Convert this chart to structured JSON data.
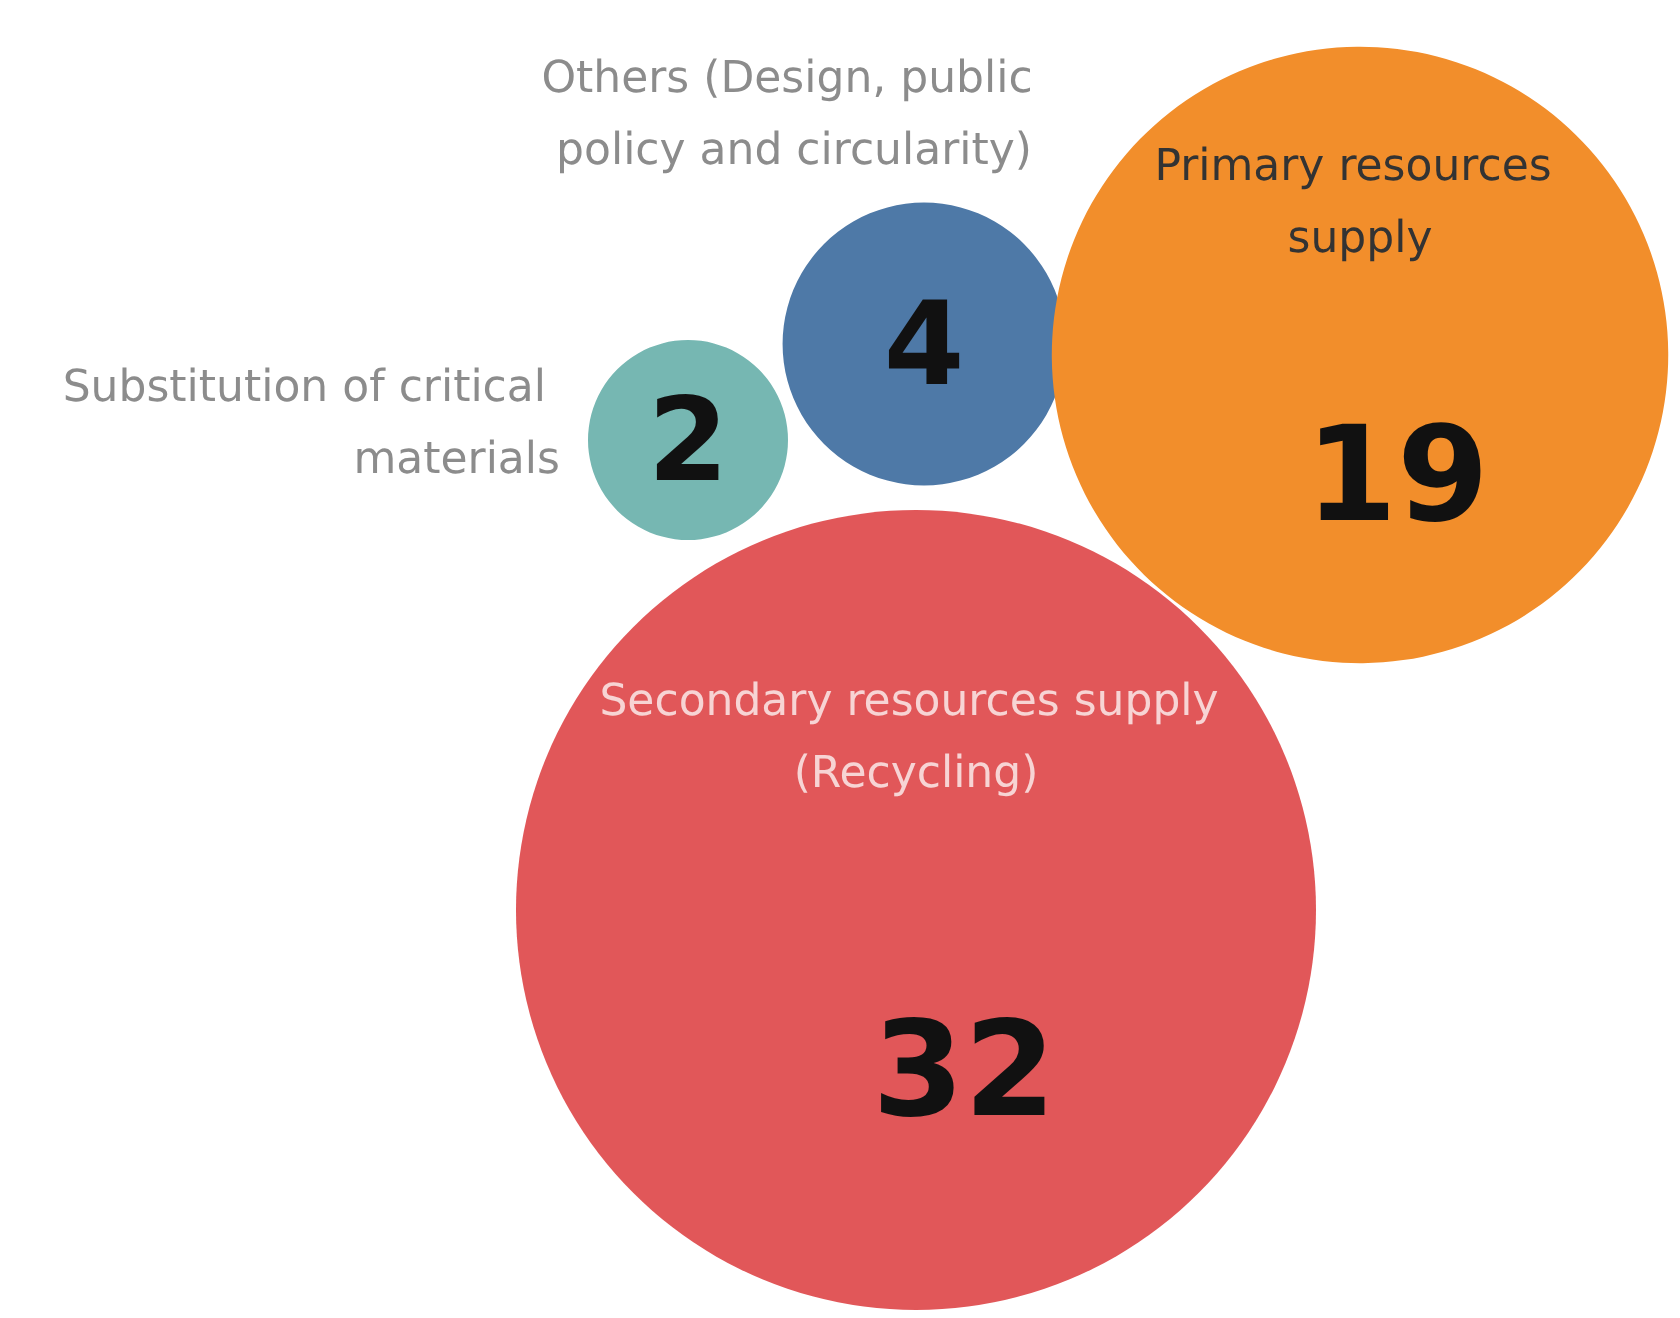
{
  "chart_data": {
    "type": "other",
    "categories": [
      "Substitution of critical materials",
      "Others (Design, public policy and circularity)",
      "Primary resources supply",
      "Secondary resources supply (Recycling)"
    ],
    "values": [
      2,
      4,
      19,
      32
    ],
    "colors": [
      "#76b7b2",
      "#4e79a7",
      "#f28e2b",
      "#e15759"
    ],
    "data_labels": true
  }
}
